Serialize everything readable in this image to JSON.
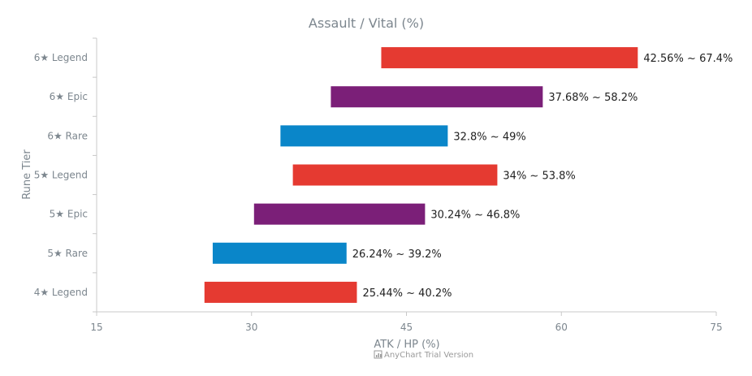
{
  "chart_data": {
    "type": "bar",
    "orientation": "horizontal",
    "range": true,
    "title": "Assault / Vital (%)",
    "xlabel": "ATK / HP (%)",
    "ylabel": "Rune Tier",
    "xlim": [
      15,
      75
    ],
    "x_ticks": [
      "15",
      "30",
      "45",
      "60",
      "75"
    ],
    "categories": [
      "6★ Legend",
      "6★ Epic",
      "6★ Rare",
      "5★ Legend",
      "5★ Epic",
      "5★ Rare",
      "4★ Legend"
    ],
    "values": [
      [
        42.56,
        67.4
      ],
      [
        37.68,
        58.2
      ],
      [
        32.8,
        49
      ],
      [
        34,
        53.8
      ],
      [
        30.24,
        46.8
      ],
      [
        26.24,
        39.2
      ],
      [
        25.44,
        40.2
      ]
    ],
    "data_labels": [
      "42.56% ~ 67.4%",
      "37.68% ~ 58.2%",
      "32.8% ~ 49%",
      "34% ~ 53.8%",
      "30.24% ~ 46.8%",
      "26.24% ~ 39.2%",
      "25.44% ~ 40.2%"
    ],
    "bar_colors": [
      "#e53a31",
      "#7b1f78",
      "#0a86c9",
      "#e53a31",
      "#7b1f78",
      "#0a86c9",
      "#e53a31"
    ],
    "grid": false,
    "legend": "none"
  },
  "credits": {
    "text": "AnyChart Trial Version"
  },
  "colors": {
    "axis": "#c8c8c8",
    "text": "#7c868e",
    "label": "#212121"
  }
}
